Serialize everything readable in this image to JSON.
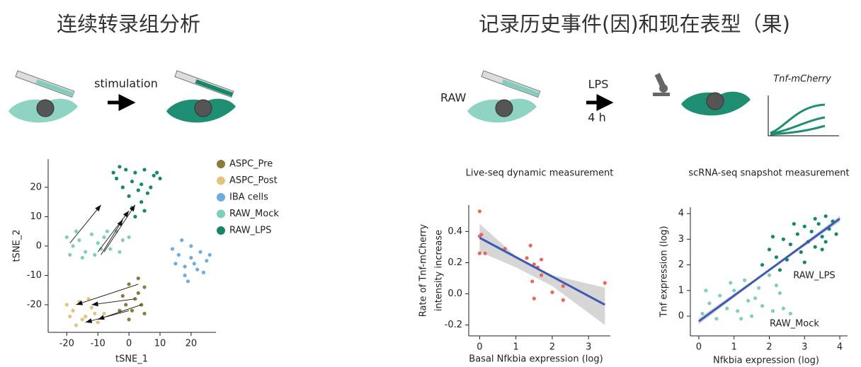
{
  "headings": [
    "连续转录组分析",
    "记录历史事件(因)和现在表型（果)"
  ],
  "diagram": {
    "stimulation": "stimulation",
    "cell_line": "RAW",
    "treatment": "LPS",
    "duration": "4 h",
    "reporter": "Tnf-mCherry"
  },
  "chart_data": [
    {
      "type": "scatter",
      "xlabel": "tSNE_1",
      "ylabel": "tSNE_2",
      "legend": true,
      "xlim": [
        -26,
        28
      ],
      "ylim": [
        -29.4,
        29.6
      ],
      "xticks": [
        -20,
        -10,
        0,
        10,
        20
      ],
      "yticks": [
        -20,
        -10,
        0,
        10,
        20
      ],
      "series": [
        {
          "name": "ASPC_Pre",
          "color": "#8a7c3c",
          "x": [
            -2,
            0,
            3,
            5,
            2,
            4,
            1,
            5,
            -1,
            3,
            -3,
            0
          ],
          "y": [
            -17,
            -13,
            -11,
            -14,
            -18,
            -20,
            -22,
            -23,
            -20,
            -16,
            -22,
            -25
          ]
        },
        {
          "name": "ASPC_Post",
          "color": "#e2c47c",
          "x": [
            -20,
            -18,
            -16,
            -14,
            -12,
            -10,
            -15,
            -19,
            -8,
            -13,
            -17,
            -11
          ],
          "y": [
            -20,
            -22,
            -19,
            -24,
            -21,
            -26,
            -25,
            -24,
            -23,
            -18,
            -27,
            -23
          ]
        },
        {
          "name": "IBA cells",
          "color": "#6aade2",
          "x": [
            17,
            20,
            23,
            25,
            22,
            18,
            15,
            16,
            20,
            24,
            19,
            21,
            14,
            26,
            18
          ],
          "y": [
            2,
            0,
            -2,
            -5,
            -8,
            -10,
            -6,
            -3,
            -4,
            -9,
            -12,
            -6,
            -1,
            -3,
            -7
          ]
        },
        {
          "name": "RAW_Mock",
          "color": "#7fcfbe",
          "x": [
            -20,
            -18,
            -16,
            -14,
            -12,
            -10,
            -8,
            -6,
            -4,
            -2,
            -15,
            -19,
            -11,
            -7,
            -3,
            0,
            -17,
            -9
          ],
          "y": [
            3,
            0,
            2,
            -2,
            4,
            1,
            3,
            -1,
            5,
            2,
            -4,
            -3,
            -3,
            5,
            -2,
            3,
            5,
            -1
          ]
        },
        {
          "name": "RAW_LPS",
          "color": "#17876a",
          "x": [
            -5,
            -3,
            -1,
            2,
            5,
            8,
            10,
            1,
            -2,
            3,
            6,
            4,
            1,
            5,
            0,
            7,
            -4,
            9,
            2,
            4
          ],
          "y": [
            25,
            27,
            26,
            25,
            26,
            24,
            23,
            22,
            20,
            19,
            18,
            15,
            13,
            12,
            17,
            20,
            23,
            25,
            10,
            21
          ]
        }
      ],
      "arrows": [
        {
          "from": [
            -19,
            1
          ],
          "to": [
            -9,
            14
          ]
        },
        {
          "from": [
            -10,
            -2
          ],
          "to": [
            0,
            12
          ]
        },
        {
          "from": [
            -8,
            -2
          ],
          "to": [
            2,
            14
          ]
        },
        {
          "from": [
            -9,
            -3
          ],
          "to": [
            -2,
            9
          ]
        },
        {
          "from": [
            3,
            -13
          ],
          "to": [
            -17,
            -20
          ]
        },
        {
          "from": [
            2,
            -18
          ],
          "to": [
            -12,
            -20
          ]
        },
        {
          "from": [
            4,
            -20
          ],
          "to": [
            -10,
            -25
          ]
        },
        {
          "from": [
            0,
            -22
          ],
          "to": [
            -14,
            -26
          ]
        }
      ]
    },
    {
      "type": "scatter",
      "title": "Live-seq dynamic measurement",
      "xlabel": "Basal Nfkbia expression (log)",
      "ylabel": [
        "Rate of Tnf-mCherry",
        "intensity increase"
      ],
      "legend": false,
      "xlim": [
        -0.3,
        3.6
      ],
      "ylim": [
        -0.27,
        0.57
      ],
      "xticks": [
        0,
        1,
        2,
        3
      ],
      "yticks": [
        -0.2,
        {
          "value": 0,
          "label": "0.0"
        },
        0.2,
        0.4
      ],
      "series": [
        {
          "color": "#e8675f",
          "x": [
            0,
            0,
            0,
            0.15,
            0.7,
            1.3,
            1.4,
            1.5,
            1.6,
            1.7,
            1.45,
            1.7,
            2.0,
            2.3,
            2.3,
            1.5,
            3.45,
            0.05
          ],
          "y": [
            0.53,
            0.37,
            0.26,
            0.26,
            0.29,
            0.23,
            0.31,
            0.19,
            0.17,
            0.22,
            0.08,
            0.12,
            0.01,
            0.05,
            -0.04,
            -0.03,
            0.07,
            0.38
          ]
        }
      ],
      "fit": {
        "color": "#3c5bb0",
        "x": [
          0,
          3.45
        ],
        "y": [
          0.36,
          -0.07
        ]
      },
      "band": {
        "color": "#c8c8c8",
        "x": [
          0,
          1,
          2,
          3.45
        ],
        "upper": [
          0.45,
          0.24,
          0.12,
          0.04
        ],
        "lower": [
          0.27,
          0.17,
          0.05,
          -0.2
        ]
      }
    },
    {
      "type": "scatter",
      "title": "scRNA-seq snapshot measurement",
      "xlabel": "Nfkbia expression (log)",
      "ylabel": [
        "Tnf expression (log)"
      ],
      "legend": false,
      "xlim": [
        -0.24,
        4.22
      ],
      "ylim": [
        -0.77,
        4.25
      ],
      "xticks": [
        0,
        1,
        2,
        3,
        4
      ],
      "yticks": [
        0,
        1,
        2,
        3,
        4
      ],
      "series": [
        {
          "name": "RAW_LPS",
          "color": "#17876a",
          "x": [
            1.8,
            2.0,
            2.2,
            2.4,
            2.5,
            2.6,
            2.8,
            2.9,
            3.0,
            3.1,
            3.2,
            3.3,
            3.4,
            3.5,
            3.6,
            3.7,
            3.8,
            3.9,
            2.3,
            2.7,
            3.0,
            3.3,
            3.5,
            2.1,
            3.6
          ],
          "y": [
            2.0,
            2.6,
            2.3,
            3.0,
            2.2,
            2.8,
            3.2,
            2.5,
            3.5,
            2.9,
            3.3,
            2.7,
            3.6,
            3.1,
            3.9,
            3.4,
            3.7,
            3.2,
            1.8,
            3.6,
            2.1,
            3.8,
            2.6,
            3.1,
            2.9
          ]
        },
        {
          "name": "RAW_Mock",
          "color": "#7fcfbe",
          "x": [
            0.1,
            0.3,
            0.5,
            0.6,
            0.8,
            1.0,
            1.1,
            1.3,
            1.4,
            1.5,
            1.7,
            1.8,
            2.0,
            2.1,
            2.3,
            2.4,
            2.6,
            0.2,
            0.9,
            1.6,
            1.2,
            2.2
          ],
          "y": [
            0.1,
            0.5,
            -0.1,
            0.8,
            0.3,
            1.0,
            0.2,
            1.4,
            0.6,
            0.0,
            1.1,
            0.4,
            1.6,
            0.2,
            0.9,
            0.3,
            0.1,
            1.0,
            1.3,
            0.7,
            -0.1,
            1.2
          ]
        }
      ],
      "fit": {
        "color": "#3c5bb0",
        "x": [
          0,
          4
        ],
        "y": [
          -0.2,
          3.8
        ]
      },
      "band": {
        "color": "#c4c4d8",
        "x": [
          0,
          2,
          4
        ],
        "upper": [
          -0.08,
          1.83,
          3.92
        ],
        "lower": [
          -0.32,
          1.77,
          3.68
        ]
      }
    }
  ]
}
